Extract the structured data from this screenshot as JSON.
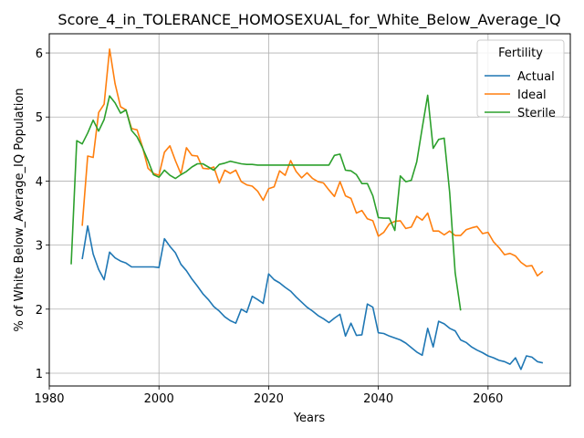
{
  "chart_data": {
    "type": "line",
    "title": "Score_4_in_TOLERANCE_HOMOSEXUAL_for_White_Below_Average_IQ",
    "xlabel": "Years",
    "ylabel": "% of White Below_Average_IQ Population",
    "xlim": [
      1980,
      2075
    ],
    "ylim": [
      0.8,
      6.3
    ],
    "xticks": [
      1980,
      2000,
      2020,
      2040,
      2060
    ],
    "yticks": [
      1,
      2,
      3,
      4,
      5,
      6
    ],
    "grid": true,
    "legend": {
      "title": "Fertility",
      "position": "top-right"
    },
    "series": [
      {
        "name": "Actual",
        "color": "#1f77b4",
        "x": [
          1986,
          1987,
          1988,
          1989,
          1990,
          1991,
          1992,
          1993,
          1994,
          1995,
          1996,
          1997,
          1998,
          1999,
          2000,
          2001,
          2002,
          2003,
          2004,
          2005,
          2006,
          2007,
          2008,
          2009,
          2010,
          2011,
          2012,
          2013,
          2014,
          2015,
          2016,
          2017,
          2018,
          2019,
          2020,
          2021,
          2022,
          2023,
          2024,
          2025,
          2026,
          2027,
          2028,
          2029,
          2030,
          2031,
          2032,
          2033,
          2034,
          2035,
          2036,
          2037,
          2038,
          2039,
          2040,
          2041,
          2042,
          2043,
          2044,
          2045,
          2046,
          2047,
          2048,
          2049,
          2050,
          2051,
          2052,
          2053,
          2054,
          2055,
          2056,
          2057,
          2058,
          2059,
          2060,
          2061,
          2062,
          2063,
          2064,
          2065,
          2066,
          2067,
          2068,
          2069,
          2070
        ],
        "y": [
          2.78,
          3.3,
          2.86,
          2.62,
          2.46,
          2.89,
          2.8,
          2.75,
          2.72,
          2.66,
          2.66,
          2.66,
          2.66,
          2.66,
          2.65,
          3.1,
          2.98,
          2.88,
          2.7,
          2.6,
          2.47,
          2.36,
          2.24,
          2.15,
          2.04,
          1.97,
          1.88,
          1.82,
          1.78,
          2.0,
          1.95,
          2.2,
          2.15,
          2.09,
          2.55,
          2.46,
          2.41,
          2.34,
          2.28,
          2.19,
          2.11,
          2.03,
          1.97,
          1.9,
          1.85,
          1.79,
          1.86,
          1.92,
          1.58,
          1.78,
          1.59,
          1.6,
          2.08,
          2.03,
          1.63,
          1.62,
          1.58,
          1.55,
          1.52,
          1.47,
          1.4,
          1.33,
          1.28,
          1.7,
          1.41,
          1.81,
          1.77,
          1.7,
          1.66,
          1.52,
          1.48,
          1.41,
          1.36,
          1.32,
          1.27,
          1.24,
          1.2,
          1.18,
          1.14,
          1.24,
          1.06,
          1.27,
          1.25,
          1.18,
          1.16
        ]
      },
      {
        "name": "Ideal",
        "color": "#ff7f0e",
        "x": [
          1986,
          1987,
          1988,
          1989,
          1990,
          1991,
          1992,
          1993,
          1994,
          1995,
          1996,
          1997,
          1998,
          1999,
          2000,
          2001,
          2002,
          2003,
          2004,
          2005,
          2006,
          2007,
          2008,
          2009,
          2010,
          2011,
          2012,
          2013,
          2014,
          2015,
          2016,
          2017,
          2018,
          2019,
          2020,
          2021,
          2022,
          2023,
          2024,
          2025,
          2026,
          2027,
          2028,
          2029,
          2030,
          2031,
          2032,
          2033,
          2034,
          2035,
          2036,
          2037,
          2038,
          2039,
          2040,
          2041,
          2042,
          2043,
          2044,
          2045,
          2046,
          2047,
          2048,
          2049,
          2050,
          2051,
          2052,
          2053,
          2054,
          2055,
          2056,
          2057,
          2058,
          2059,
          2060,
          2061,
          2062,
          2063,
          2064,
          2065,
          2066,
          2067,
          2068,
          2069,
          2070
        ],
        "y": [
          3.3,
          4.39,
          4.37,
          5.07,
          5.2,
          6.06,
          5.52,
          5.16,
          5.11,
          4.82,
          4.8,
          4.53,
          4.2,
          4.12,
          4.09,
          4.45,
          4.55,
          4.32,
          4.11,
          4.52,
          4.4,
          4.39,
          4.2,
          4.19,
          4.22,
          3.97,
          4.17,
          4.12,
          4.17,
          3.99,
          3.94,
          3.92,
          3.84,
          3.7,
          3.88,
          3.91,
          4.16,
          4.09,
          4.32,
          4.15,
          4.05,
          4.13,
          4.04,
          3.99,
          3.97,
          3.86,
          3.76,
          3.99,
          3.77,
          3.73,
          3.5,
          3.54,
          3.41,
          3.38,
          3.14,
          3.2,
          3.33,
          3.37,
          3.38,
          3.26,
          3.28,
          3.45,
          3.39,
          3.5,
          3.22,
          3.22,
          3.16,
          3.22,
          3.15,
          3.15,
          3.24,
          3.27,
          3.29,
          3.18,
          3.2,
          3.05,
          2.96,
          2.85,
          2.87,
          2.83,
          2.73,
          2.67,
          2.68,
          2.52,
          2.59
        ]
      },
      {
        "name": "Sterile",
        "color": "#2ca02c",
        "x": [
          1984,
          1985,
          1986,
          1987,
          1988,
          1989,
          1990,
          1991,
          1992,
          1993,
          1994,
          1995,
          1996,
          1997,
          1998,
          1999,
          2000,
          2001,
          2002,
          2003,
          2004,
          2005,
          2006,
          2007,
          2008,
          2009,
          2010,
          2011,
          2012,
          2013,
          2014,
          2015,
          2016,
          2017,
          2018,
          2019,
          2020,
          2021,
          2022,
          2023,
          2024,
          2025,
          2026,
          2027,
          2028,
          2029,
          2030,
          2031,
          2032,
          2033,
          2034,
          2035,
          2036,
          2037,
          2038,
          2039,
          2040,
          2041,
          2042,
          2043,
          2044,
          2045,
          2046,
          2047,
          2048,
          2049,
          2050,
          2051,
          2052,
          2053,
          2054,
          2055
        ],
        "y": [
          2.7,
          4.63,
          4.58,
          4.75,
          4.95,
          4.78,
          4.96,
          5.33,
          5.22,
          5.06,
          5.11,
          4.79,
          4.69,
          4.52,
          4.32,
          4.1,
          4.06,
          4.17,
          4.09,
          4.04,
          4.1,
          4.15,
          4.22,
          4.27,
          4.27,
          4.22,
          4.17,
          4.26,
          4.28,
          4.31,
          4.29,
          4.27,
          4.26,
          4.26,
          4.25,
          4.25,
          4.25,
          4.25,
          4.25,
          4.25,
          4.25,
          4.25,
          4.25,
          4.25,
          4.25,
          4.25,
          4.25,
          4.25,
          4.4,
          4.42,
          4.17,
          4.16,
          4.1,
          3.96,
          3.96,
          3.77,
          3.43,
          3.42,
          3.42,
          3.23,
          4.08,
          3.99,
          4.01,
          4.3,
          4.83,
          5.34,
          4.51,
          4.65,
          4.67,
          3.82,
          2.57,
          1.98
        ]
      }
    ]
  }
}
